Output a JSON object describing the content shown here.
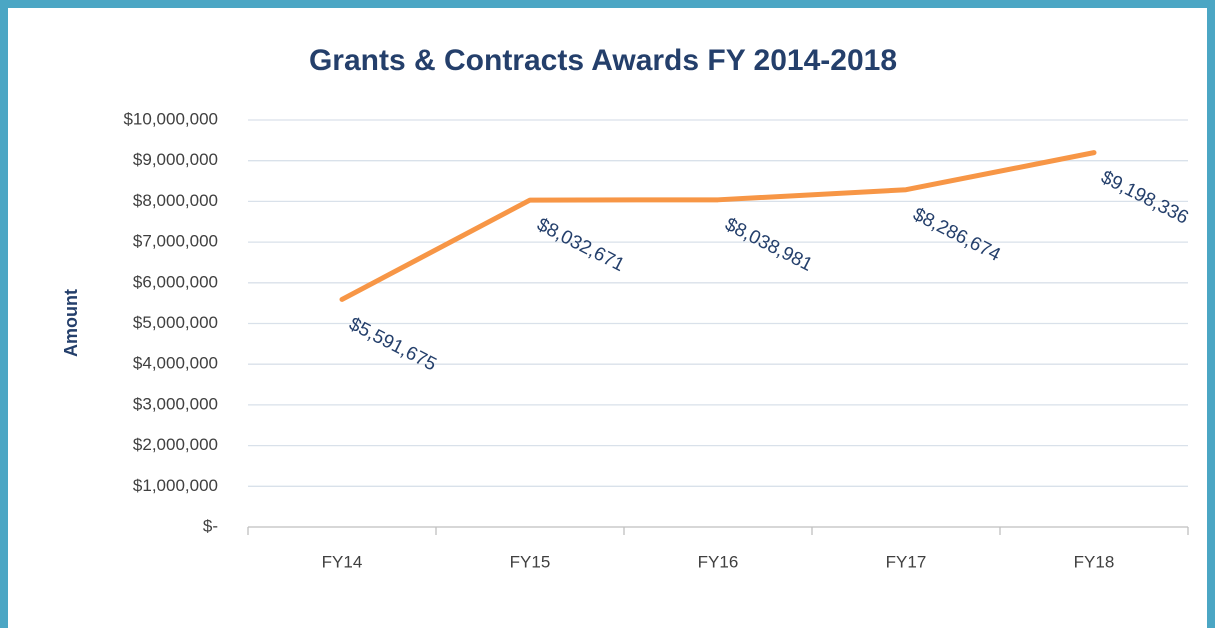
{
  "chart_data": {
    "type": "line",
    "title": "Grants & Contracts Awards FY 2014-2018",
    "ylabel": "Amount",
    "categories": [
      "FY14",
      "FY15",
      "FY16",
      "FY17",
      "FY18"
    ],
    "values": [
      5591675,
      8032671,
      8038981,
      8286674,
      9198336
    ],
    "value_labels": [
      "$5,591,675",
      "$8,032,671",
      "$8,038,981",
      "$8,286,674",
      "$9,198,336"
    ],
    "color": "#f79646",
    "ylim": [
      0,
      10000000
    ],
    "yticks": [
      {
        "value": 0,
        "label": "$-"
      },
      {
        "value": 1000000,
        "label": "$1,000,000"
      },
      {
        "value": 2000000,
        "label": "$2,000,000"
      },
      {
        "value": 3000000,
        "label": "$3,000,000"
      },
      {
        "value": 4000000,
        "label": "$4,000,000"
      },
      {
        "value": 5000000,
        "label": "$5,000,000"
      },
      {
        "value": 6000000,
        "label": "$6,000,000"
      },
      {
        "value": 7000000,
        "label": "$7,000,000"
      },
      {
        "value": 8000000,
        "label": "$8,000,000"
      },
      {
        "value": 9000000,
        "label": "$9,000,000"
      },
      {
        "value": 10000000,
        "label": "$10,000,000"
      }
    ],
    "grid": true
  }
}
